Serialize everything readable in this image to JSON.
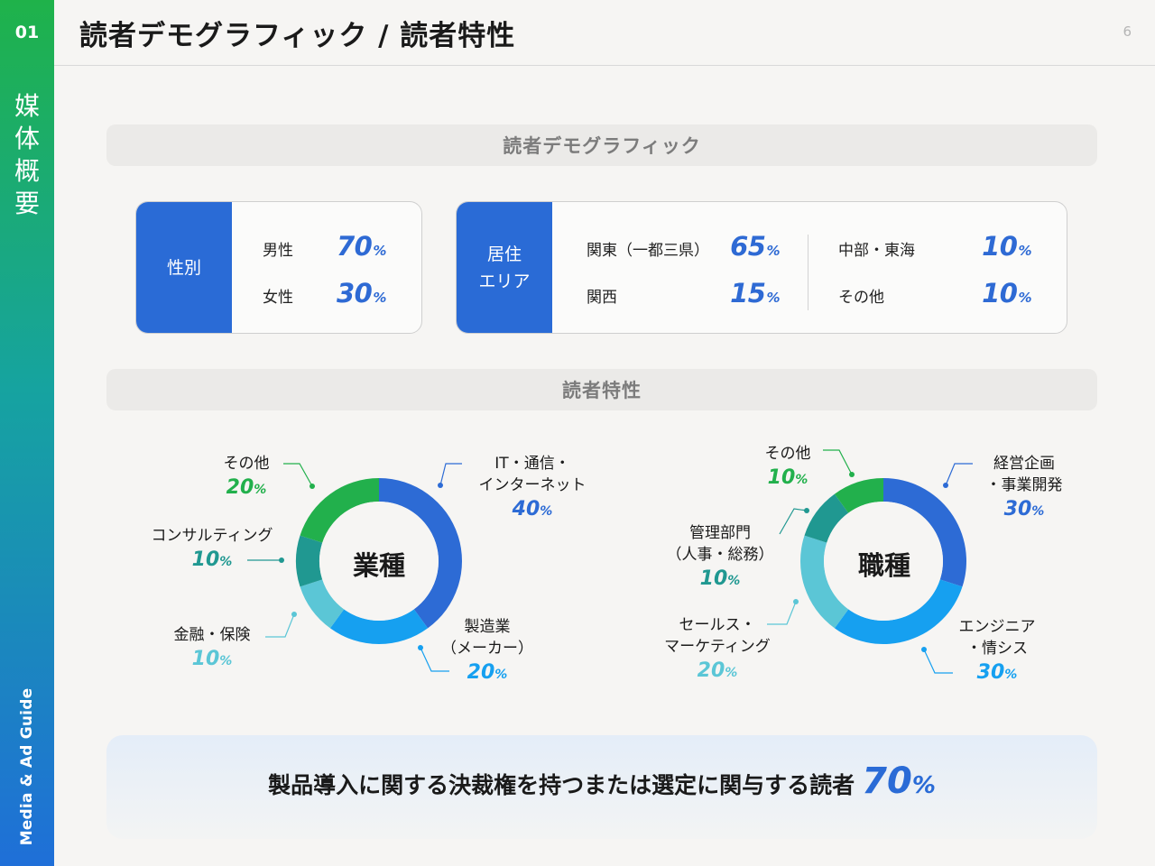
{
  "section_number": "01",
  "category": [
    "媒",
    "体",
    "概",
    "要"
  ],
  "guide_label": "Media & Ad Guide",
  "page_title": "読者デモグラフィック / 読者特性",
  "page_number": "6",
  "demographics_header": "読者デモグラフィック",
  "characteristics_header": "読者特性",
  "gender": {
    "label": "性別",
    "rows": [
      {
        "label": "男性",
        "value": "70",
        "unit": "%"
      },
      {
        "label": "女性",
        "value": "30",
        "unit": "%"
      }
    ]
  },
  "residence": {
    "label_line1": "居住",
    "label_line2": "エリア",
    "rows": [
      {
        "label": "関東（一都三県）",
        "value": "65",
        "unit": "%"
      },
      {
        "label": "関西",
        "value": "15",
        "unit": "%"
      },
      {
        "label": "中部・東海",
        "value": "10",
        "unit": "%"
      },
      {
        "label": "その他",
        "value": "10",
        "unit": "%"
      }
    ]
  },
  "colors": {
    "blue": "#2d6bd5",
    "lightblue": "#16a0f0",
    "cyan": "#5bc6d6",
    "teal": "#209891",
    "green": "#22b04c",
    "accent": "#2a6bd6"
  },
  "chart_data": [
    {
      "type": "pie",
      "title": "業種",
      "categories": [
        "IT・通信・インターネット",
        "製造業（メーカー）",
        "金融・保険",
        "コンサルティング",
        "その他"
      ],
      "values": [
        40,
        20,
        10,
        10,
        20
      ],
      "label_lines": [
        [
          "IT・通信・",
          "インターネット"
        ],
        [
          "製造業",
          "（メーカー）"
        ],
        [
          "金融・保険"
        ],
        [
          "コンサルティング"
        ],
        [
          "その他"
        ]
      ],
      "value_text": [
        "40",
        "20",
        "10",
        "10",
        "20"
      ],
      "unit": "%",
      "colors": [
        "#2d6bd5",
        "#16a0f0",
        "#5bc6d6",
        "#209891",
        "#22b04c"
      ]
    },
    {
      "type": "pie",
      "title": "職種",
      "categories": [
        "経営企画・事業開発",
        "エンジニア・情シス",
        "セールス・マーケティング",
        "管理部門（人事・総務）",
        "その他"
      ],
      "values": [
        30,
        30,
        20,
        10,
        10
      ],
      "label_lines": [
        [
          "経営企画",
          "・事業開発"
        ],
        [
          "エンジニア",
          "・情シス"
        ],
        [
          "セールス・",
          "マーケティング"
        ],
        [
          "管理部門",
          "（人事・総務）"
        ],
        [
          "その他"
        ]
      ],
      "value_text": [
        "30",
        "30",
        "20",
        "10",
        "10"
      ],
      "unit": "%",
      "colors": [
        "#2d6bd5",
        "#16a0f0",
        "#5bc6d6",
        "#209891",
        "#22b04c"
      ]
    }
  ],
  "banner": {
    "text": "製品導入に関する決裁権を持つまたは選定に関与する読者",
    "value": "70",
    "unit": "%"
  }
}
